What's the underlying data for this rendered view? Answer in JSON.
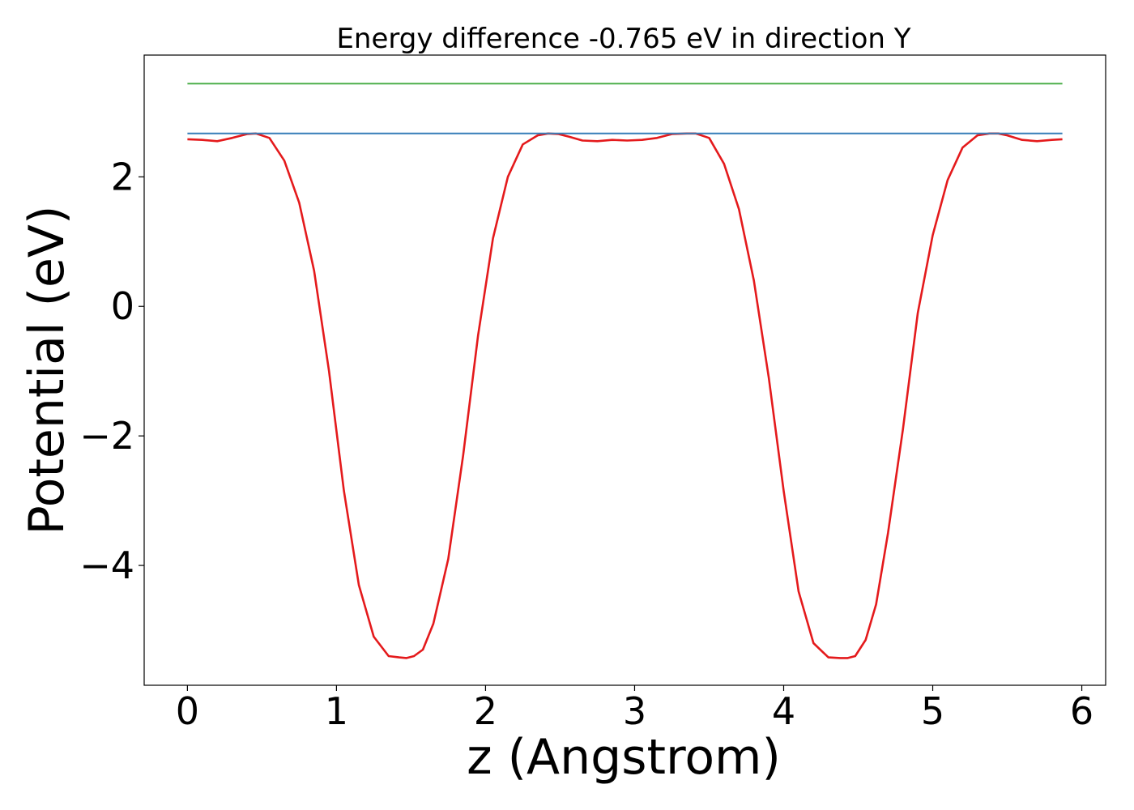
{
  "chart_data": {
    "type": "line",
    "title": "Energy difference -0.765 eV in direction Y",
    "xlabel": "z (Angstrom)",
    "ylabel": "Potential (eV)",
    "xlim": [
      -0.29,
      6.16
    ],
    "ylim": [
      -5.85,
      3.88
    ],
    "x_ticks": [
      0,
      1,
      2,
      3,
      4,
      5,
      6
    ],
    "x_tick_labels": [
      "0",
      "1",
      "2",
      "3",
      "4",
      "5",
      "6"
    ],
    "y_ticks": [
      -4,
      -2,
      0,
      2
    ],
    "y_tick_labels": [
      "−4",
      "−2",
      "0",
      "2"
    ],
    "grid": false,
    "legend": false,
    "series": [
      {
        "color": "#e41a1c",
        "x": [
          0,
          0.1,
          0.2,
          0.3,
          0.4,
          0.46,
          0.55,
          0.65,
          0.75,
          0.85,
          0.95,
          1.05,
          1.15,
          1.25,
          1.35,
          1.42,
          1.47,
          1.52,
          1.58,
          1.65,
          1.75,
          1.85,
          1.95,
          2.05,
          2.15,
          2.25,
          2.35,
          2.42,
          2.49,
          2.56,
          2.65,
          2.75,
          2.85,
          2.95,
          3.05,
          3.15,
          3.25,
          3.35,
          3.41,
          3.5,
          3.6,
          3.7,
          3.8,
          3.9,
          4.0,
          4.1,
          4.2,
          4.3,
          4.38,
          4.43,
          4.48,
          4.55,
          4.62,
          4.7,
          4.8,
          4.9,
          5.0,
          5.1,
          5.2,
          5.3,
          5.38,
          5.44,
          5.5,
          5.6,
          5.7,
          5.8,
          5.87
        ],
        "y": [
          2.58,
          2.57,
          2.55,
          2.6,
          2.66,
          2.67,
          2.6,
          2.25,
          1.6,
          0.55,
          -1.0,
          -2.85,
          -4.3,
          -5.1,
          -5.4,
          -5.42,
          -5.43,
          -5.4,
          -5.3,
          -4.9,
          -3.9,
          -2.3,
          -0.45,
          1.05,
          2.0,
          2.5,
          2.64,
          2.67,
          2.66,
          2.62,
          2.56,
          2.55,
          2.57,
          2.56,
          2.57,
          2.6,
          2.66,
          2.67,
          2.67,
          2.6,
          2.2,
          1.5,
          0.4,
          -1.1,
          -2.85,
          -4.4,
          -5.2,
          -5.42,
          -5.43,
          -5.43,
          -5.4,
          -5.15,
          -4.6,
          -3.5,
          -1.9,
          -0.1,
          1.1,
          1.95,
          2.45,
          2.64,
          2.67,
          2.67,
          2.64,
          2.57,
          2.55,
          2.57,
          2.58
        ]
      },
      {
        "color": "#377eb8",
        "x": [
          0,
          5.87
        ],
        "y": [
          2.67,
          2.67
        ]
      },
      {
        "color": "#4daf4a",
        "x": [
          0,
          5.87
        ],
        "y": [
          3.44,
          3.44
        ]
      }
    ]
  }
}
